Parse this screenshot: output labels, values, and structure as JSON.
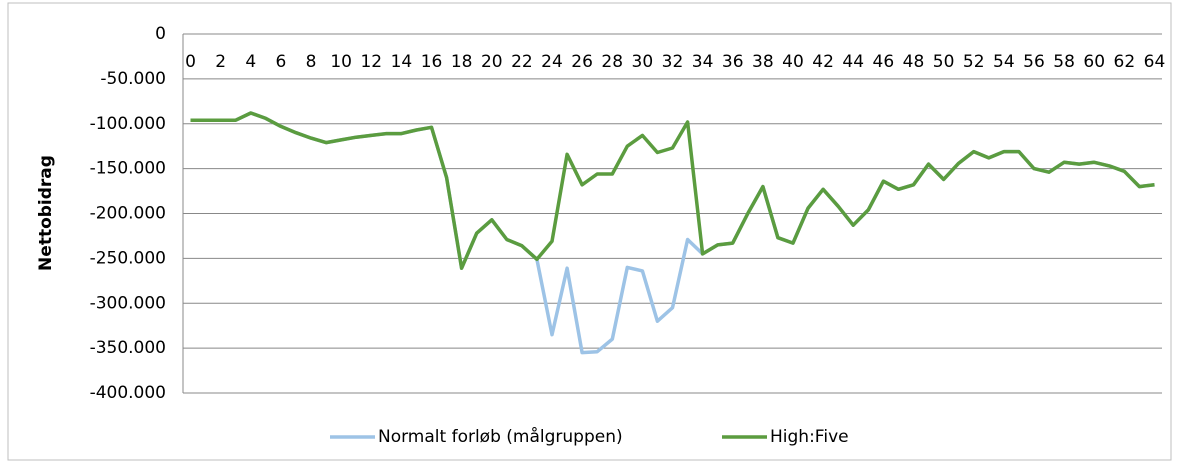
{
  "chart_data": {
    "type": "line",
    "y_label": "Nettobidrag",
    "categories": [
      "0",
      null,
      "2",
      null,
      "4",
      null,
      "6",
      null,
      "8",
      null,
      "10",
      null,
      "12",
      null,
      "14",
      null,
      "16",
      null,
      "18",
      null,
      "20",
      null,
      "22",
      null,
      "24",
      null,
      "26",
      null,
      "28",
      null,
      "30",
      null,
      "32",
      null,
      "34",
      null,
      "36",
      null,
      "38",
      null,
      "40",
      null,
      "42",
      null,
      "44",
      null,
      "46",
      null,
      "48",
      null,
      "50",
      null,
      "52",
      null,
      "54",
      null,
      "56",
      null,
      "58",
      null,
      "60",
      null,
      "62",
      null,
      "64"
    ],
    "series": [
      {
        "name": "Normalt forløb (målgruppen)",
        "color": "#9dc3e6",
        "values": [
          -96000,
          -96000,
          -96000,
          -96000,
          -88000,
          -94000,
          -103000,
          -110000,
          -116000,
          -121000,
          -118000,
          -115000,
          -113000,
          -111000,
          -111000,
          -107000,
          -104000,
          -160000,
          -261000,
          -222000,
          -207000,
          -229000,
          -236000,
          -251000,
          -335000,
          -261000,
          -355000,
          -354000,
          -340000,
          -260000,
          -264000,
          -320000,
          -305000,
          -229000,
          -245000,
          -235000,
          -233000,
          -200000,
          -170000,
          -227000,
          -233000,
          -194000,
          -173000,
          -192000,
          -213000,
          -196000,
          -164000,
          -173000,
          -168000,
          -145000,
          -162000,
          -144000,
          -131000,
          -138000,
          -131000,
          -131000,
          -150000,
          -154000,
          -143000,
          -145000,
          -143000,
          -147000,
          -153000,
          -170000,
          -168000
        ]
      },
      {
        "name": "High:Five",
        "color": "#5b9c3f",
        "values": [
          -96000,
          -96000,
          -96000,
          -96000,
          -88000,
          -94000,
          -103000,
          -110000,
          -116000,
          -121000,
          -118000,
          -115000,
          -113000,
          -111000,
          -111000,
          -107000,
          -104000,
          -160000,
          -261000,
          -222000,
          -207000,
          -229000,
          -236000,
          -251000,
          -231000,
          -134000,
          -168000,
          -156000,
          -156000,
          -125000,
          -113000,
          -132000,
          -127000,
          -98000,
          -245000,
          -235000,
          -233000,
          -200000,
          -170000,
          -227000,
          -233000,
          -194000,
          -173000,
          -192000,
          -213000,
          -196000,
          -164000,
          -173000,
          -168000,
          -145000,
          -162000,
          -144000,
          -131000,
          -138000,
          -131000,
          -131000,
          -150000,
          -154000,
          -143000,
          -145000,
          -143000,
          -147000,
          -153000,
          -170000,
          -168000
        ]
      }
    ],
    "ylim": [
      -400000,
      0
    ],
    "yticks": [
      0,
      {
        "value": -50000,
        "label": "-50.000"
      },
      {
        "value": -100000,
        "label": "-100.000"
      },
      {
        "value": -150000,
        "label": "-150.000"
      },
      {
        "value": -200000,
        "label": "-200.000"
      },
      {
        "value": -250000,
        "label": "-250.000"
      },
      {
        "value": -300000,
        "label": "-300.000"
      },
      {
        "value": -350000,
        "label": "-350.000"
      },
      {
        "value": -400000,
        "label": "-400.000"
      }
    ],
    "grid": true,
    "legend": "bottom"
  }
}
